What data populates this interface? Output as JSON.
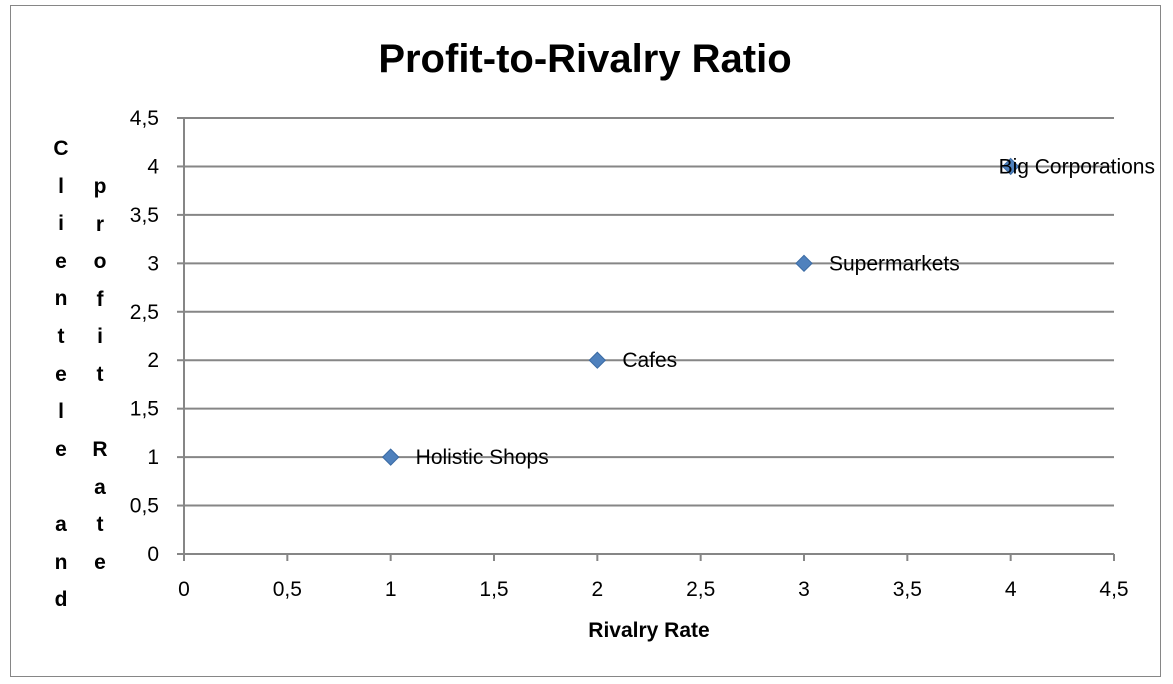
{
  "chart_data": {
    "type": "scatter",
    "title": "Profit-to-Rivalry Ratio",
    "xlabel": "Rivalry Rate",
    "ylabel_columns": [
      "Clientele and",
      "profit Rate"
    ],
    "xlim": [
      0,
      4.5
    ],
    "ylim": [
      0,
      4.5
    ],
    "x_ticks": [
      "0",
      "0,5",
      "1",
      "1,5",
      "2",
      "2,5",
      "3",
      "3,5",
      "4",
      "4,5"
    ],
    "y_ticks": [
      "0",
      "0,5",
      "1",
      "1,5",
      "2",
      "2,5",
      "3",
      "3,5",
      "4",
      "4,5"
    ],
    "grid": "horizontal",
    "series": [
      {
        "marker": "diamond",
        "color": "#4f81bd",
        "points": [
          {
            "x": 1,
            "y": 1,
            "label": "Holistic Shops"
          },
          {
            "x": 2,
            "y": 2,
            "label": "Cafes"
          },
          {
            "x": 3,
            "y": 3,
            "label": "Supermarkets"
          },
          {
            "x": 4,
            "y": 4,
            "label": "Big Corporations"
          }
        ]
      }
    ],
    "colors": {
      "marker": "#4f81bd",
      "grid": "#868686",
      "axis": "#868686",
      "text": "#000000"
    }
  }
}
